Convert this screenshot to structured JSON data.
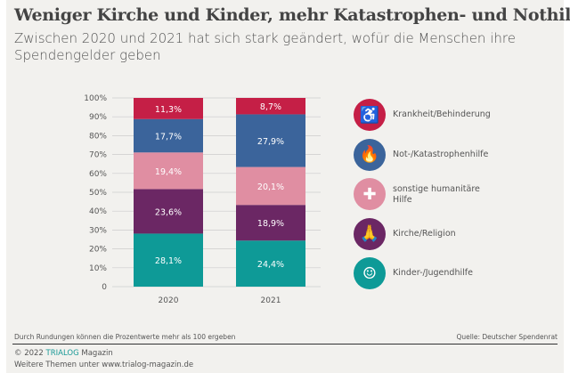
{
  "title": "Weniger Kirche und Kinder, mehr Katastrophen- und Nothilfe",
  "subtitle": "Zwischen 2020 und 2021 hat sich stark geändert, wofür die Menschen ihre Spendengelder geben",
  "chart_data": {
    "type": "bar",
    "stacked": true,
    "categories": [
      "2020",
      "2021"
    ],
    "ylim": [
      0,
      100
    ],
    "yticks": [
      "0",
      "10%",
      "20%",
      "30%",
      "40%",
      "50%",
      "60%",
      "70%",
      "80%",
      "90%",
      "100%"
    ],
    "series": [
      {
        "name": "Kinder-/Jugendhilfe",
        "color": "#0e9a97",
        "icon": "baby-icon",
        "values": [
          28.1,
          24.4
        ],
        "labels": [
          "28,1%",
          "24,4%"
        ]
      },
      {
        "name": "Kirche/Religion",
        "color": "#6b2764",
        "icon": "praying-hands-icon",
        "values": [
          23.6,
          18.9
        ],
        "labels": [
          "23,6%",
          "18,9%"
        ]
      },
      {
        "name": "sonstige humanitäre Hilfe",
        "color": "#e08ea2",
        "icon": "medical-kit-icon",
        "values": [
          19.4,
          20.1
        ],
        "labels": [
          "19,4%",
          "20,1%"
        ]
      },
      {
        "name": "Not-/Katastrophenhilfe",
        "color": "#3b649b",
        "icon": "flame-icon",
        "values": [
          17.7,
          27.9
        ],
        "labels": [
          "17,7%",
          "27,9%"
        ]
      },
      {
        "name": "Krankheit/Behinderung",
        "color": "#c51f46",
        "icon": "wheelchair-icon",
        "values": [
          11.3,
          8.7
        ],
        "labels": [
          "11,3%",
          "8,7%"
        ]
      }
    ],
    "legend": [
      "Krankheit/Behinderung",
      "Not-/Katastrophenhilfe",
      "sonstige humanitäre Hilfe",
      "Kirche/Religion",
      "Kinder-/Jugendhilfe"
    ],
    "legend_position": "right"
  },
  "footer": {
    "note": "Durch Rundungen können die Prozentwerte mehr als 100 ergeben",
    "source": "Quelle: Deutscher Spendenrat",
    "copyright_prefix": "© 2022 ",
    "brand": "TRIALOG",
    "copyright_suffix": " Magazin",
    "more": "Weitere Themen unter www.trialog-magazin.de"
  }
}
